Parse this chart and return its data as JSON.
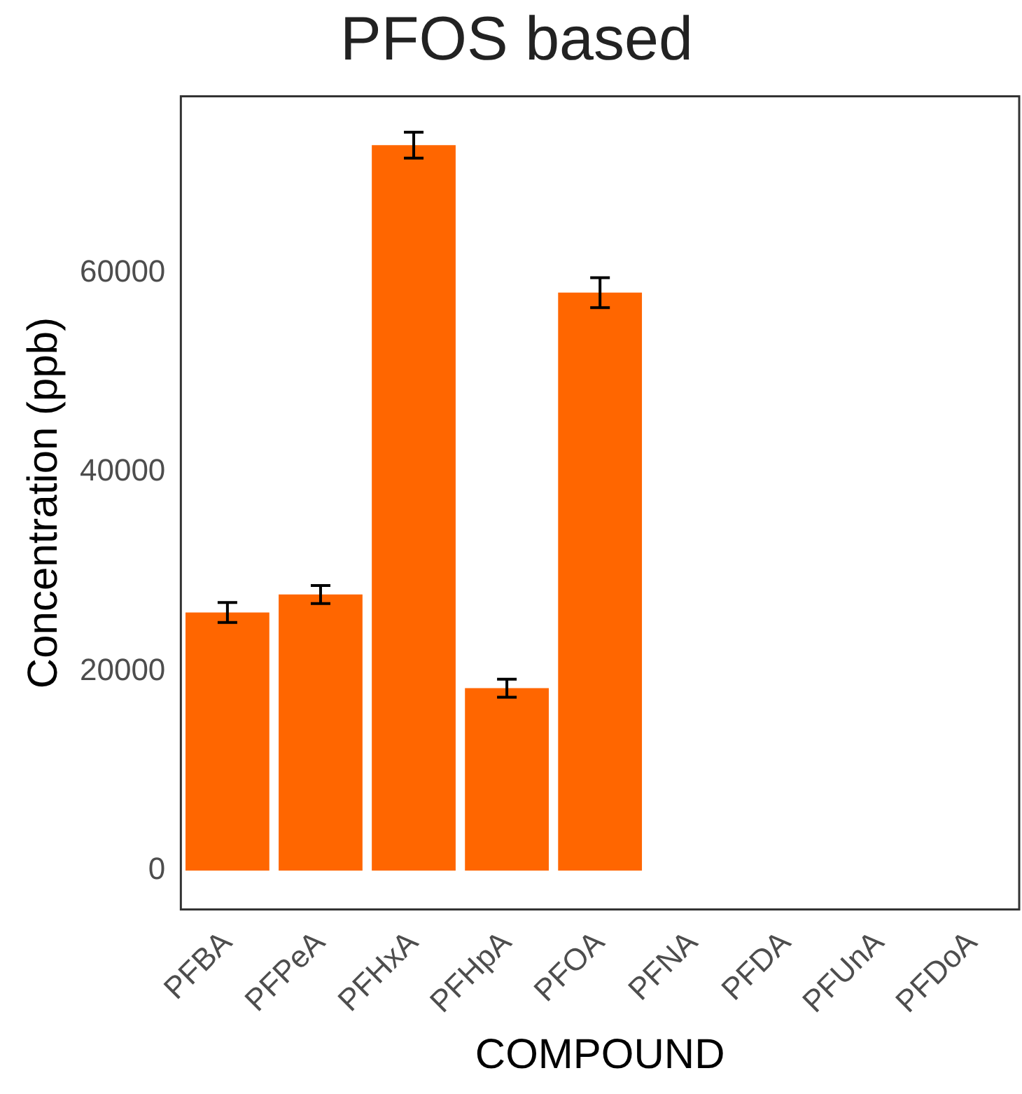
{
  "chart_data": {
    "type": "bar",
    "title": "PFOS based",
    "xlabel": "COMPOUND",
    "ylabel": "Concentration (ppb)",
    "categories": [
      "PFBA",
      "PFPeA",
      "PFHxA",
      "PFHpA",
      "PFOA",
      "PFNA",
      "PFDA",
      "PFUnA",
      "PFDoA"
    ],
    "values": [
      25900,
      27700,
      72800,
      18300,
      58000,
      null,
      null,
      null,
      null
    ],
    "errors": [
      1000,
      900,
      1300,
      900,
      1500,
      null,
      null,
      null,
      null
    ],
    "color": "#ff6600",
    "ylim": [
      -3900,
      77700
    ],
    "yticks": [
      0,
      20000,
      40000,
      60000
    ],
    "grid": false,
    "legend": false
  }
}
